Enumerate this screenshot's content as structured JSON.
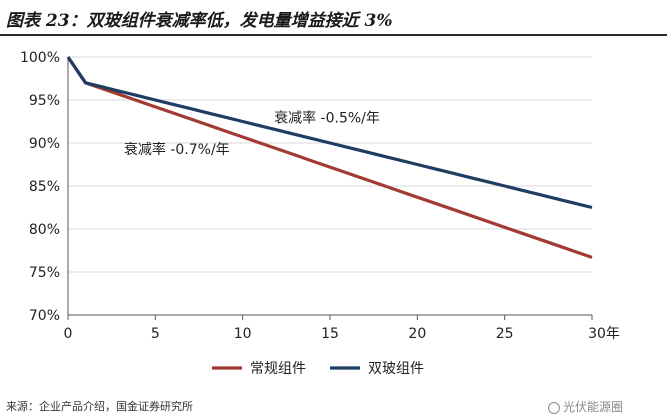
{
  "figure": {
    "title": "图表 23：双玻组件衰减率低，发电量增益接近 3%",
    "source": "来源：企业产品介绍，国金证券研究所",
    "watermark": "光伏能源圈"
  },
  "chart_data": {
    "type": "line",
    "x_unit_label": "30年",
    "xlim": [
      0,
      30
    ],
    "ylim": [
      70,
      100
    ],
    "x_ticks": [
      0,
      5,
      10,
      15,
      20,
      25
    ],
    "y_ticks": [
      70,
      75,
      80,
      85,
      90,
      95,
      100
    ],
    "y_tick_labels": [
      "70%",
      "75%",
      "80%",
      "85%",
      "90%",
      "95%",
      "100%"
    ],
    "x": [
      0,
      1,
      2,
      3,
      4,
      5,
      6,
      7,
      8,
      9,
      10,
      11,
      12,
      13,
      14,
      15,
      16,
      17,
      18,
      19,
      20,
      21,
      22,
      23,
      24,
      25,
      26,
      27,
      28,
      29,
      30
    ],
    "series": [
      {
        "name": "常规组件",
        "color": "#A23B34",
        "values": [
          100,
          97.0,
          96.3,
          95.6,
          94.9,
          94.2,
          93.5,
          92.8,
          92.1,
          91.4,
          90.7,
          90.0,
          89.3,
          88.6,
          87.9,
          87.2,
          86.5,
          85.8,
          85.1,
          84.4,
          83.7,
          83.0,
          82.3,
          81.6,
          80.9,
          80.2,
          79.5,
          78.8,
          78.1,
          77.4,
          76.7
        ]
      },
      {
        "name": "双玻组件",
        "color": "#1F3C63",
        "values": [
          100,
          97.0,
          96.5,
          96.0,
          95.5,
          95.0,
          94.5,
          94.0,
          93.5,
          93.0,
          92.5,
          92.0,
          91.5,
          91.0,
          90.5,
          90.0,
          89.5,
          89.0,
          88.5,
          88.0,
          87.5,
          87.0,
          86.5,
          86.0,
          85.5,
          85.0,
          84.5,
          84.0,
          83.5,
          83.0,
          82.5
        ]
      }
    ],
    "annotations": [
      {
        "text": "衰减率 -0.5%/年",
        "x": 11.8,
        "y": 92.4
      },
      {
        "text": "衰减率 -0.7%/年",
        "x": 3.2,
        "y": 88.7
      }
    ],
    "legend": "bottom",
    "grid": true
  }
}
